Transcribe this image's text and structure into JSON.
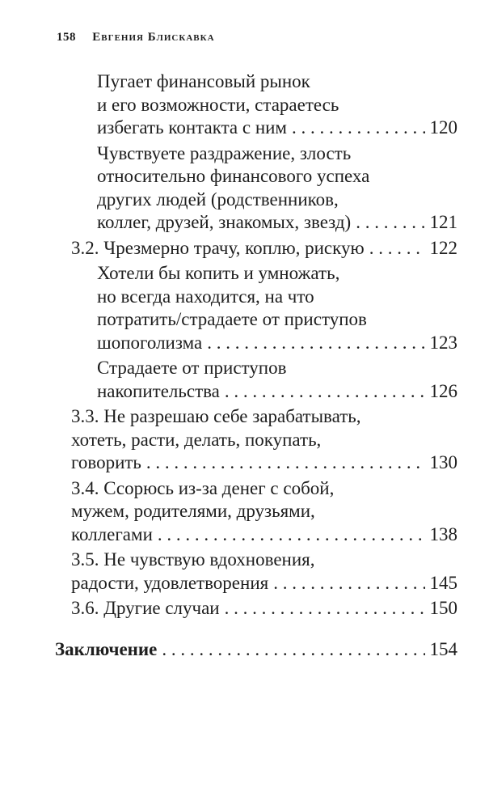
{
  "header": {
    "page_number": "158",
    "author": "Евгения Блискавка"
  },
  "toc": [
    {
      "level": 3,
      "lines": [
        "Пугает финансовый рынок",
        "и его возможности, стараетесь",
        "избегать контакта с ним"
      ],
      "page": "120"
    },
    {
      "level": 3,
      "lines": [
        "Чувствуете раздражение, злость",
        "относительно финансового успеха",
        "других людей (родственников,",
        "коллег, друзей, знакомых, звезд)"
      ],
      "page": "121"
    },
    {
      "level": 2,
      "lines": [
        "3.2. Чрезмерно трачу, коплю, рискую"
      ],
      "page": "122"
    },
    {
      "level": 3,
      "lines": [
        "Хотели бы копить и умножать,",
        "но всегда находится, на что",
        "потратить/страдаете от приступов",
        "шопоголизма"
      ],
      "page": "123"
    },
    {
      "level": 3,
      "lines": [
        "Страдаете от приступов",
        "накопительства"
      ],
      "page": "126"
    },
    {
      "level": 2,
      "lines": [
        "3.3. Не разрешаю себе зарабатывать,",
        "хотеть, расти, делать, покупать,",
        "говорить"
      ],
      "page": "130"
    },
    {
      "level": 2,
      "lines": [
        "3.4. Ссорюсь из-за денег с собой,",
        "мужем, родителями, друзьями,",
        "коллегами"
      ],
      "page": "138"
    },
    {
      "level": 2,
      "lines": [
        "3.5. Не чувствую вдохновения,",
        "радости, удовлетворения"
      ],
      "page": "145"
    },
    {
      "level": 2,
      "lines": [
        "3.6. Другие случаи"
      ],
      "page": "150"
    },
    {
      "level": 1,
      "lines": [
        "Заключение"
      ],
      "page": "154"
    }
  ]
}
